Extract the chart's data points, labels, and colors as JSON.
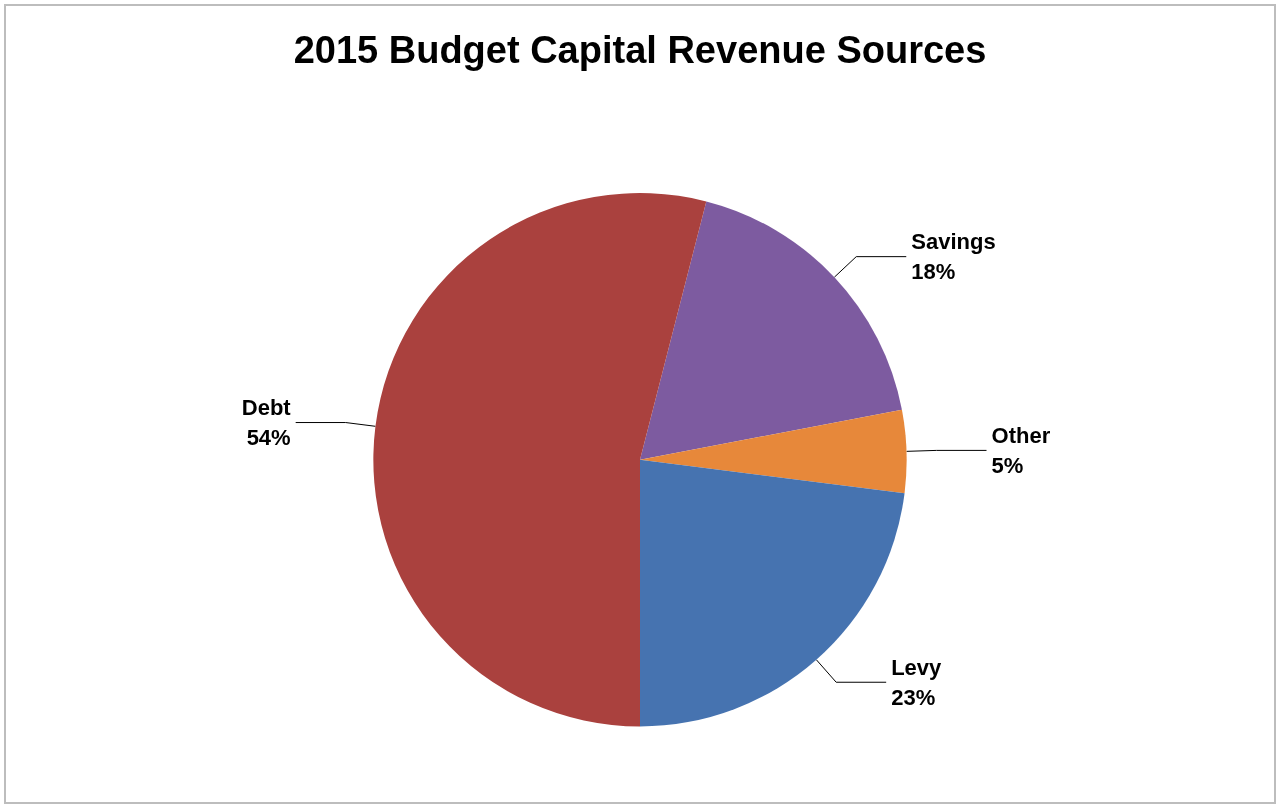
{
  "chart_data": {
    "type": "pie",
    "title": "2015 Budget Capital Revenue Sources",
    "categories": [
      "Savings",
      "Other",
      "Levy",
      "Debt"
    ],
    "values": [
      18,
      5,
      23,
      54
    ],
    "colors": [
      "#7d5ba0",
      "#e7883a",
      "#4673b0",
      "#aa413e"
    ],
    "value_labels": [
      "18%",
      "5%",
      "23%",
      "54%"
    ],
    "legend": false
  }
}
